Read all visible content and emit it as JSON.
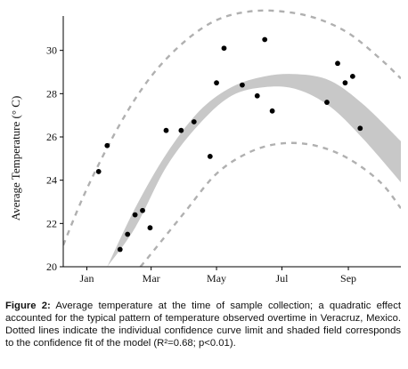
{
  "chart_data": {
    "type": "scatter",
    "ylabel": "Average Temperature (° C)",
    "x_ticks": [
      {
        "label": "Jan",
        "x": "2012-01-01"
      },
      {
        "label": "Mar",
        "x": "2012-03-01"
      },
      {
        "label": "May",
        "x": "2012-05-01"
      },
      {
        "label": "Jul",
        "x": "2012-07-01"
      },
      {
        "label": "Sep",
        "x": "2012-09-01"
      }
    ],
    "y_ticks": [
      20,
      22,
      24,
      26,
      28,
      30
    ],
    "xlim": [
      "2011-12-10",
      "2012-10-20"
    ],
    "ylim": [
      20,
      32
    ],
    "grid": false,
    "points": [
      {
        "x": "2012-01-12",
        "y": 24.4
      },
      {
        "x": "2012-01-20",
        "y": 25.6
      },
      {
        "x": "2012-02-01",
        "y": 20.8
      },
      {
        "x": "2012-02-08",
        "y": 21.5
      },
      {
        "x": "2012-02-15",
        "y": 22.4
      },
      {
        "x": "2012-02-22",
        "y": 22.6
      },
      {
        "x": "2012-02-29",
        "y": 21.8
      },
      {
        "x": "2012-03-15",
        "y": 26.3
      },
      {
        "x": "2012-03-29",
        "y": 26.3
      },
      {
        "x": "2012-04-10",
        "y": 26.7
      },
      {
        "x": "2012-04-25",
        "y": 25.1
      },
      {
        "x": "2012-05-01",
        "y": 28.5
      },
      {
        "x": "2012-05-08",
        "y": 30.1
      },
      {
        "x": "2012-05-25",
        "y": 28.4
      },
      {
        "x": "2012-06-08",
        "y": 27.9
      },
      {
        "x": "2012-06-15",
        "y": 30.5
      },
      {
        "x": "2012-06-22",
        "y": 27.2
      },
      {
        "x": "2012-08-12",
        "y": 27.6
      },
      {
        "x": "2012-08-22",
        "y": 29.4
      },
      {
        "x": "2012-08-29",
        "y": 28.5
      },
      {
        "x": "2012-09-05",
        "y": 28.8
      },
      {
        "x": "2012-09-12",
        "y": 26.4
      }
    ],
    "fit_band": {
      "x": [
        "2012-01-20",
        "2012-02-15",
        "2012-03-15",
        "2012-04-15",
        "2012-05-15",
        "2012-06-15",
        "2012-07-15",
        "2012-08-15",
        "2012-09-15",
        "2012-10-20"
      ],
      "lower": [
        20.0,
        21.8,
        24.6,
        26.6,
        27.9,
        28.3,
        28.2,
        27.4,
        25.9,
        23.9
      ],
      "upper": [
        20.0,
        22.7,
        25.2,
        27.2,
        28.3,
        28.8,
        28.9,
        28.6,
        27.5,
        25.8
      ]
    },
    "prediction_upper": {
      "x": [
        "2011-12-10",
        "2012-01-01",
        "2012-02-01",
        "2012-03-01",
        "2012-04-01",
        "2012-05-01",
        "2012-06-01",
        "2012-07-01",
        "2012-08-01",
        "2012-09-01",
        "2012-10-01",
        "2012-10-20"
      ],
      "y": [
        21.0,
        23.6,
        26.6,
        28.8,
        30.4,
        31.4,
        31.8,
        31.8,
        31.5,
        30.8,
        29.6,
        28.7
      ]
    },
    "prediction_lower": {
      "x": [
        "2012-02-20",
        "2012-03-01",
        "2012-04-01",
        "2012-05-01",
        "2012-06-01",
        "2012-07-01",
        "2012-08-01",
        "2012-09-01",
        "2012-10-01",
        "2012-10-20"
      ],
      "y": [
        20.0,
        20.6,
        22.5,
        24.3,
        25.3,
        25.7,
        25.6,
        25.0,
        23.9,
        22.7
      ]
    },
    "colors": {
      "points": "#000000",
      "band": "#c8c8c8",
      "prediction_line": "#b0b0b0",
      "axis": "#000000"
    }
  },
  "caption": {
    "label": "Figure 2:",
    "text": " Average temperature at the time of sample collection; a quadratic effect accounted for the typical pattern of temperature observed overtime in Veracruz, Mexico. Dotted lines indicate the individual confidence curve limit and shaded field corresponds to the confidence fit of the model (R²=0.68; p<0.01)."
  }
}
